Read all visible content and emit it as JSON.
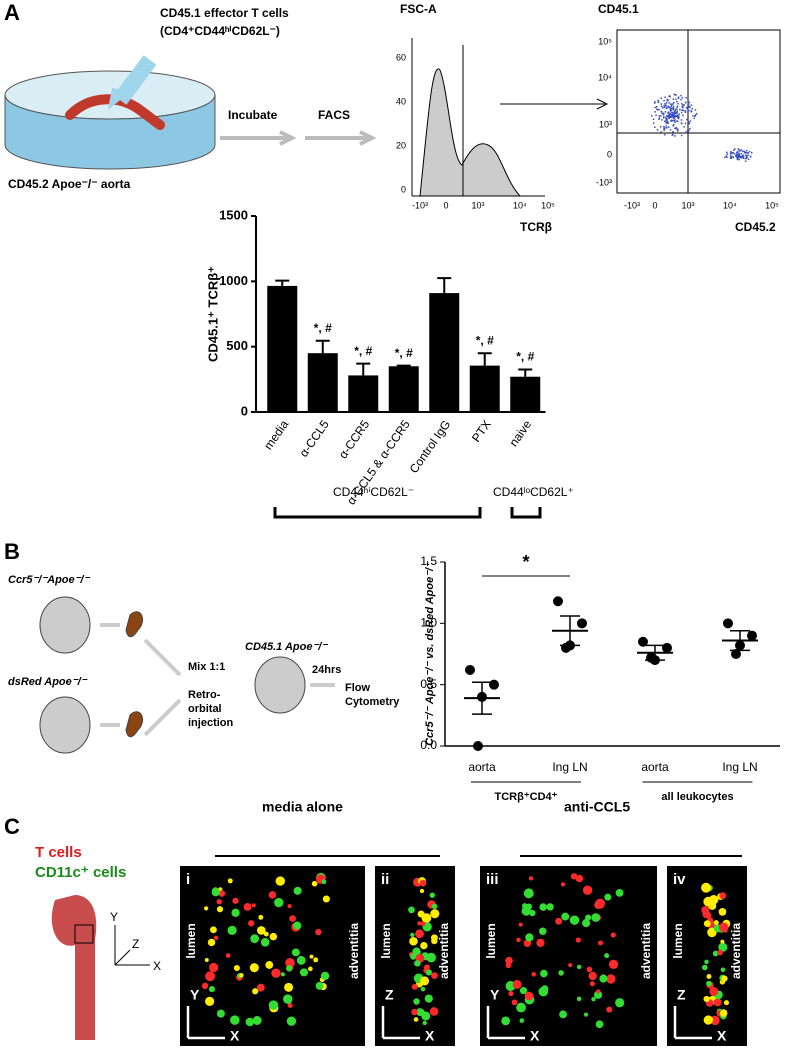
{
  "panel_a": {
    "letter": "A",
    "cells_label": "CD45.1 effector T cells",
    "cells_phenotype": "(CD4⁺CD44ʰⁱCD62L⁻)",
    "aorta_label": "CD45.2 Apoe⁻/⁻ aorta",
    "step_1": "Incubate",
    "step_2": "FACS",
    "histogram": {
      "y_label": "FSC-A",
      "x_label": "TCRβ",
      "y_tick_labels": [
        "60",
        "40",
        "20",
        "0"
      ],
      "x_tick_labels": [
        "-10³",
        "0",
        "10³",
        "10⁴",
        "10⁵"
      ]
    },
    "dot_plot": {
      "y_label": "CD45.1",
      "x_label": "CD45.2",
      "y_tick_labels": [
        "10⁵",
        "10⁴",
        "10³",
        "0",
        "-10³"
      ],
      "x_tick_labels": [
        "-10³",
        "0",
        "10³",
        "10⁴",
        "10⁵"
      ]
    },
    "group_1": "CD44ʰⁱCD62L⁻",
    "group_2": "CD44ˡᵒCD62L⁺"
  },
  "panel_b": {
    "letter": "B",
    "donor_1": "Ccr5⁻/⁻Apoe⁻/⁻",
    "donor_2": "dsRed Apoe⁻/⁻",
    "mix": "Mix 1:1",
    "route": [
      "Retro-",
      "orbital",
      "injection"
    ],
    "recipient": "CD45.1 Apoe⁻/⁻",
    "time": "24hrs",
    "readout": [
      "Flow",
      "Cytometry"
    ]
  },
  "panel_c": {
    "letter": "C",
    "legend_1": "T cells",
    "legend_2": "CD11c⁺ cells",
    "condition_1": "media alone",
    "condition_2": "anti-CCL5",
    "images": [
      "i",
      "ii",
      "iii",
      "iv"
    ],
    "lumen": "lumen",
    "adventitia": "adventitia",
    "axis_x": "X",
    "axis_y": "Y",
    "axis_z": "Z"
  },
  "chart_data": [
    {
      "type": "bar",
      "y_label": "CD45.1⁺ TCRβ⁺",
      "categories": [
        "media",
        "α-CCL5",
        "α-CCR5",
        "α-CCL5 & α-CCR5",
        "Control IgG",
        "PTX",
        "naive"
      ],
      "values": [
        965,
        450,
        280,
        350,
        910,
        355,
        270
      ],
      "errors": [
        40,
        95,
        90,
        5,
        115,
        95,
        55
      ],
      "annotations": [
        null,
        "*, #",
        "*, #",
        "*, #",
        null,
        "*, #",
        "*, #"
      ],
      "color": "#000000",
      "ylim": [
        0,
        1500
      ],
      "yticks": [
        0,
        500,
        1000,
        1500
      ]
    },
    {
      "type": "scatter",
      "y_label": "Ccr5⁻/⁻ Apoe⁻/⁻ vs. dsRed Apoe⁻/⁻",
      "categories": [
        "aorta",
        "Ing LN",
        "aorta",
        "Ing LN"
      ],
      "group_labels": [
        "TCRβ⁺CD4⁺",
        "all leukocytes"
      ],
      "points": [
        [
          0.62,
          0.5,
          0.4,
          0.0
        ],
        [
          1.18,
          1.0,
          0.82,
          0.8
        ],
        [
          0.85,
          0.8,
          0.7,
          0.72
        ],
        [
          1.0,
          0.9,
          0.82,
          0.75
        ]
      ],
      "means": [
        0.39,
        0.94,
        0.76,
        0.86
      ],
      "sems": [
        0.13,
        0.12,
        0.06,
        0.08
      ],
      "significance": "*",
      "color": "#000000",
      "ylim": [
        0,
        1.5
      ],
      "yticks": [
        {
          "value": 0,
          "label": "0.0"
        },
        0.5,
        {
          "value": 1,
          "label": "1.0"
        },
        1.5
      ]
    }
  ]
}
